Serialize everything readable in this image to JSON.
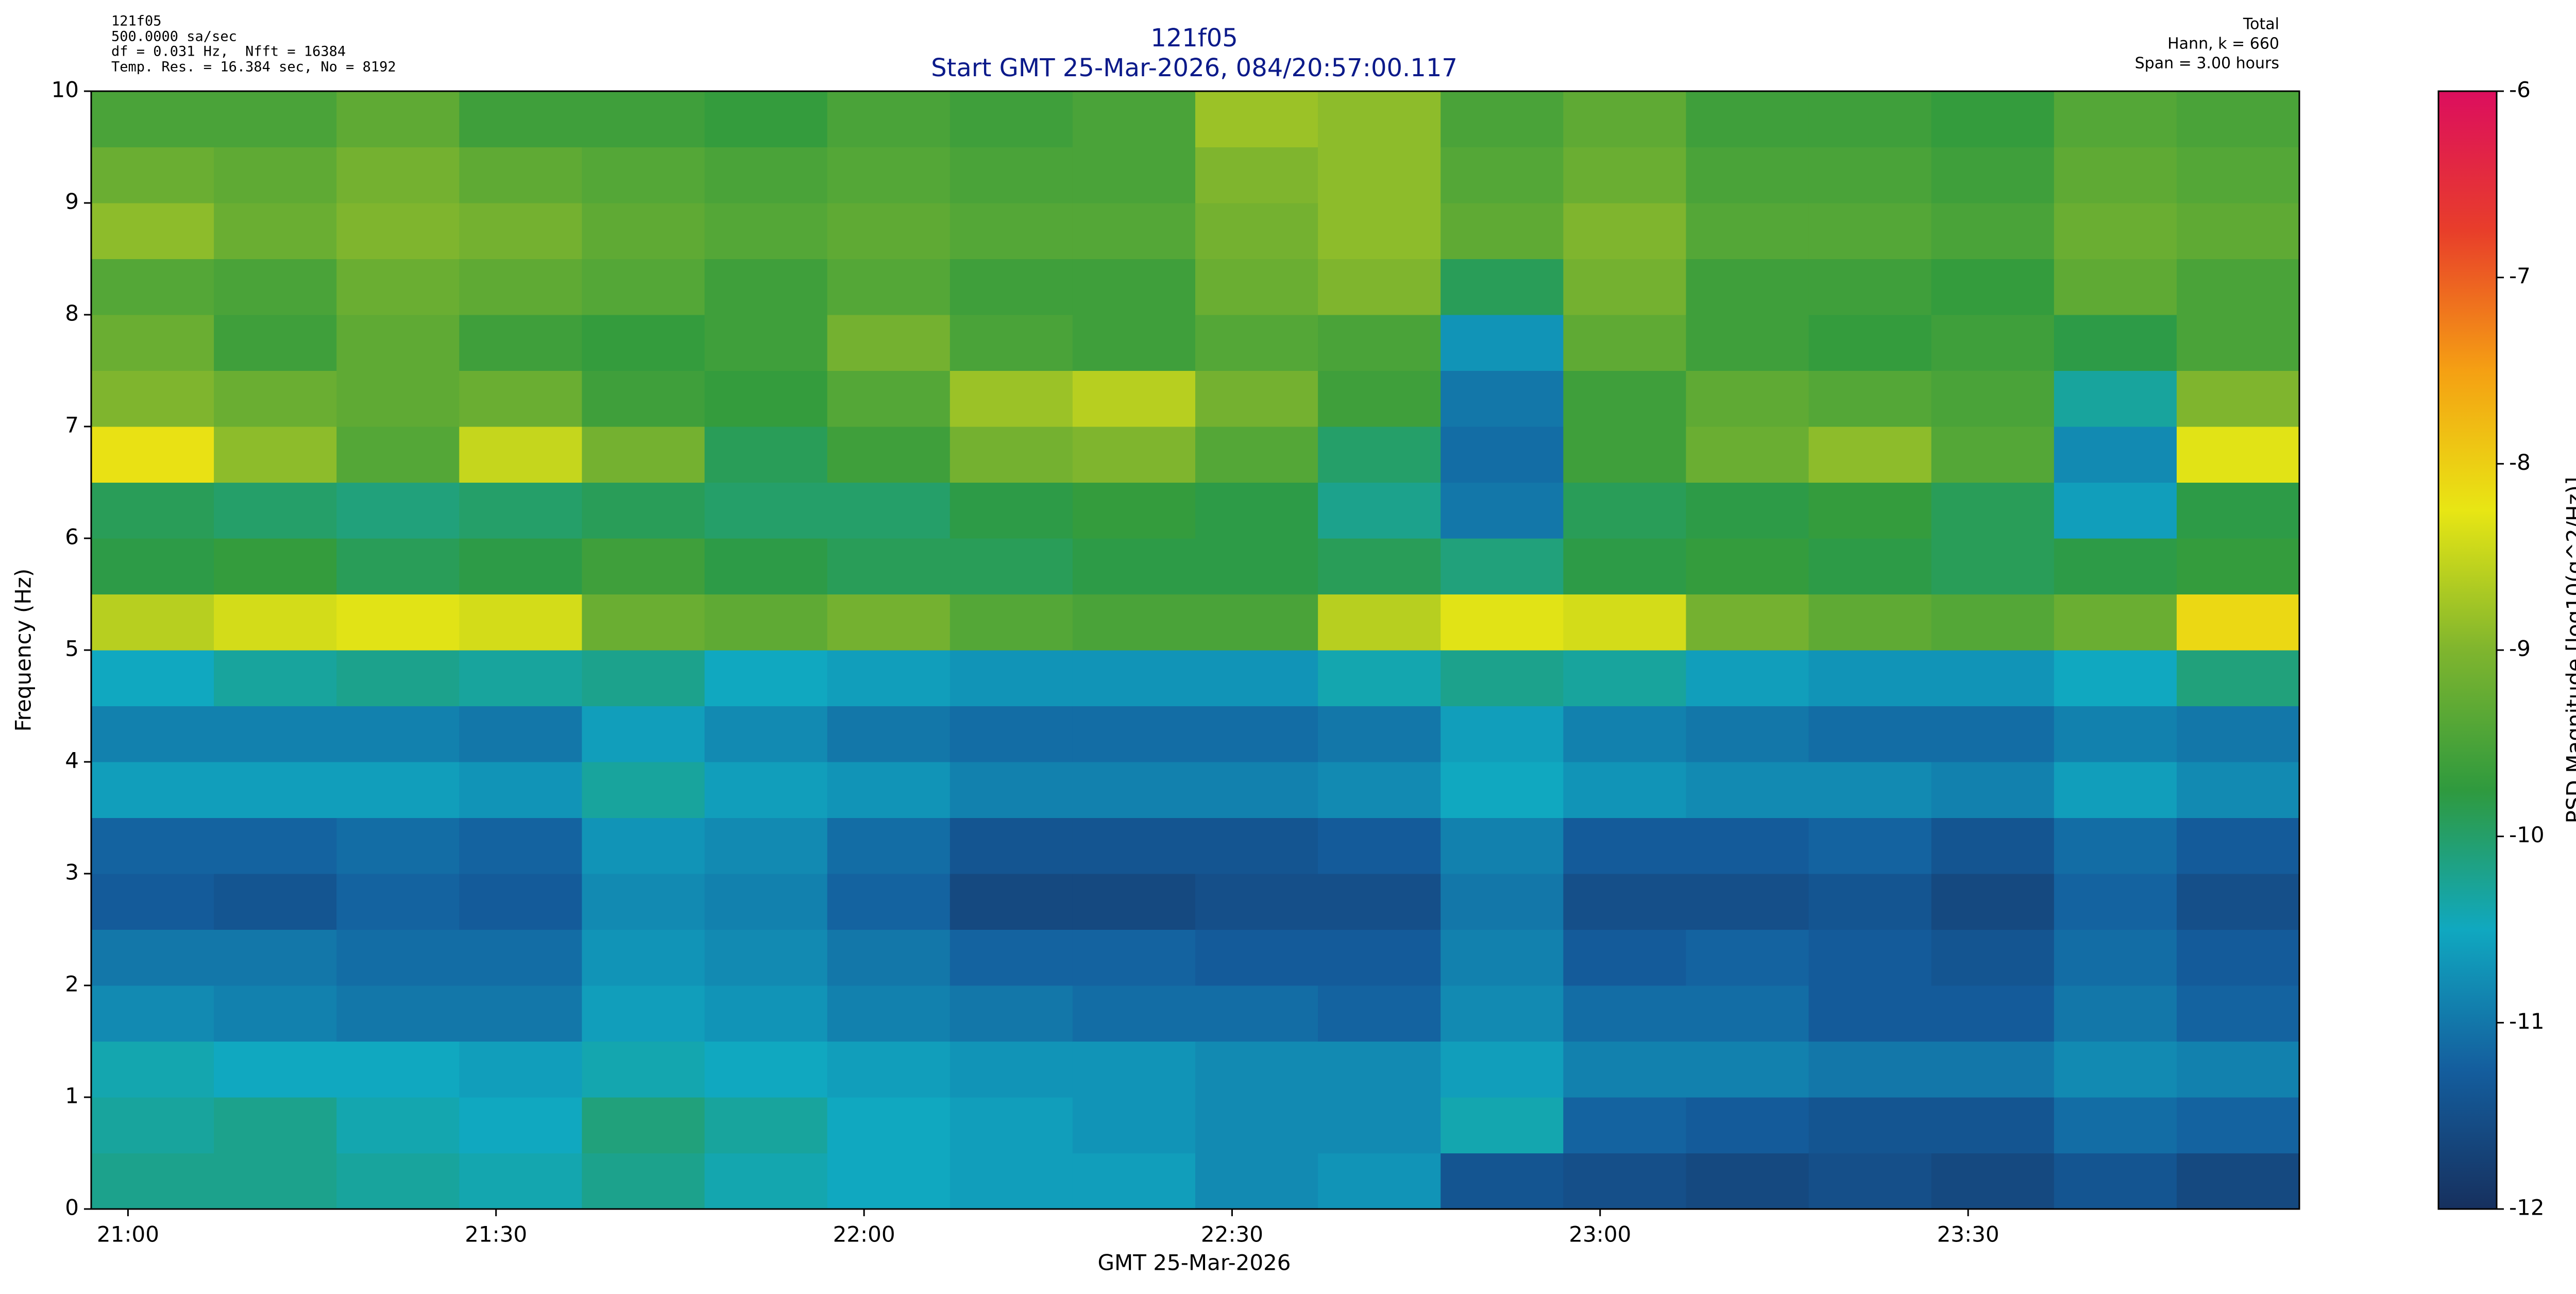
{
  "chart_data": {
    "type": "heatmap",
    "title": "121f05",
    "subtitle": "Start GMT 25-Mar-2026, 084/20:57:00.117",
    "info_left": [
      "121f05",
      "500.0000 sa/sec",
      "df = 0.031 Hz,  Nfft = 16384",
      "Temp. Res. = 16.384 sec, No = 8192"
    ],
    "info_right": [
      "Total",
      "Hann, k = 660",
      "Span = 3.00 hours"
    ],
    "x_label": "GMT 25-Mar-2026",
    "y_label": "Frequency (Hz)",
    "colorbar_label": "PSD Magnitude [log10(g^2/Hz)]",
    "xlim": [
      1257,
      1437
    ],
    "xticks": [
      {
        "value": 1260,
        "label": "21:00"
      },
      {
        "value": 1290,
        "label": "21:30"
      },
      {
        "value": 1320,
        "label": "22:00"
      },
      {
        "value": 1350,
        "label": "22:30"
      },
      {
        "value": 1380,
        "label": "23:00"
      },
      {
        "value": 1410,
        "label": "23:30"
      }
    ],
    "ylim": [
      0,
      10
    ],
    "yticks": [
      0,
      1,
      2,
      3,
      4,
      5,
      6,
      7,
      8,
      9,
      10
    ],
    "zlim": [
      -12,
      -6
    ],
    "zticks": [
      -6,
      -7,
      -8,
      -9,
      -10,
      -11,
      -12
    ],
    "colorscale": [
      "#16305e",
      "#145e9e",
      "#10a8c0",
      "#2f9a3e",
      "#7fb52e",
      "#e8e614",
      "#f5a013",
      "#e83e2a",
      "#dc0e5e"
    ],
    "x": [
      1262,
      1272,
      1282,
      1292,
      1302,
      1312,
      1322,
      1332,
      1342,
      1352,
      1362,
      1372,
      1382,
      1392,
      1402,
      1412,
      1422,
      1432
    ],
    "y": [
      0.25,
      0.75,
      1.25,
      1.75,
      2.25,
      2.75,
      3.25,
      3.75,
      4.25,
      4.75,
      5.25,
      5.75,
      6.25,
      6.75,
      7.25,
      7.75,
      8.25,
      8.75,
      9.25,
      9.75
    ],
    "z": [
      [
        -10.2,
        -10.2,
        -10.3,
        -10.4,
        -10.2,
        -10.4,
        -10.5,
        -10.6,
        -10.6,
        -10.8,
        -10.7,
        -11.4,
        -11.5,
        -11.6,
        -11.5,
        -11.6,
        -11.4,
        -11.6
      ],
      [
        -10.3,
        -10.2,
        -10.4,
        -10.5,
        -10.1,
        -10.3,
        -10.5,
        -10.6,
        -10.7,
        -10.8,
        -10.8,
        -10.4,
        -11.2,
        -11.3,
        -11.4,
        -11.4,
        -11.1,
        -11.2
      ],
      [
        -10.4,
        -10.5,
        -10.5,
        -10.6,
        -10.4,
        -10.5,
        -10.6,
        -10.7,
        -10.7,
        -10.8,
        -10.8,
        -10.6,
        -10.9,
        -10.9,
        -11.0,
        -11.0,
        -10.8,
        -10.9
      ],
      [
        -10.8,
        -10.9,
        -11.0,
        -11.0,
        -10.6,
        -10.7,
        -10.9,
        -11.0,
        -11.1,
        -11.1,
        -11.2,
        -10.8,
        -11.1,
        -11.1,
        -11.3,
        -11.3,
        -11.0,
        -11.2
      ],
      [
        -11.0,
        -11.0,
        -11.1,
        -11.1,
        -10.7,
        -10.8,
        -11.0,
        -11.2,
        -11.2,
        -11.3,
        -11.3,
        -10.9,
        -11.3,
        -11.2,
        -11.3,
        -11.4,
        -11.1,
        -11.3
      ],
      [
        -11.3,
        -11.4,
        -11.2,
        -11.3,
        -10.8,
        -10.9,
        -11.2,
        -11.6,
        -11.6,
        -11.5,
        -11.5,
        -11.0,
        -11.5,
        -11.5,
        -11.4,
        -11.6,
        -11.2,
        -11.5
      ],
      [
        -11.2,
        -11.2,
        -11.1,
        -11.2,
        -10.7,
        -10.8,
        -11.1,
        -11.4,
        -11.4,
        -11.4,
        -11.3,
        -10.9,
        -11.3,
        -11.3,
        -11.2,
        -11.4,
        -11.1,
        -11.3
      ],
      [
        -10.6,
        -10.6,
        -10.6,
        -10.7,
        -10.3,
        -10.6,
        -10.7,
        -10.9,
        -10.9,
        -10.9,
        -10.8,
        -10.5,
        -10.7,
        -10.8,
        -10.8,
        -10.9,
        -10.6,
        -10.8
      ],
      [
        -10.9,
        -10.9,
        -10.9,
        -11.0,
        -10.6,
        -10.8,
        -11.0,
        -11.1,
        -11.1,
        -11.1,
        -11.0,
        -10.6,
        -10.9,
        -11.0,
        -11.1,
        -11.1,
        -10.9,
        -11.0
      ],
      [
        -10.5,
        -10.3,
        -10.2,
        -10.3,
        -10.2,
        -10.5,
        -10.6,
        -10.7,
        -10.7,
        -10.7,
        -10.4,
        -10.2,
        -10.3,
        -10.6,
        -10.7,
        -10.7,
        -10.5,
        -10.1
      ],
      [
        -8.6,
        -8.4,
        -8.3,
        -8.4,
        -9.2,
        -9.3,
        -9.1,
        -9.4,
        -9.5,
        -9.5,
        -8.6,
        -8.3,
        -8.4,
        -9.1,
        -9.3,
        -9.4,
        -9.2,
        -8.1
      ],
      [
        -9.8,
        -9.7,
        -9.9,
        -9.8,
        -9.6,
        -9.8,
        -9.9,
        -9.9,
        -9.8,
        -9.8,
        -9.9,
        -10.1,
        -9.8,
        -9.7,
        -9.8,
        -9.9,
        -9.8,
        -9.7
      ],
      [
        -9.9,
        -10.0,
        -10.1,
        -10.0,
        -9.9,
        -10.0,
        -10.0,
        -9.8,
        -9.7,
        -9.8,
        -10.2,
        -11.0,
        -9.9,
        -9.8,
        -9.7,
        -9.9,
        -10.6,
        -9.8
      ],
      [
        -8.2,
        -8.9,
        -9.4,
        -8.5,
        -9.1,
        -9.9,
        -9.6,
        -9.1,
        -9.0,
        -9.4,
        -10.0,
        -11.1,
        -9.6,
        -9.2,
        -8.9,
        -9.4,
        -10.8,
        -8.3
      ],
      [
        -9.0,
        -9.2,
        -9.3,
        -9.2,
        -9.6,
        -9.7,
        -9.4,
        -8.8,
        -8.6,
        -9.1,
        -9.6,
        -11.0,
        -9.6,
        -9.3,
        -9.4,
        -9.5,
        -10.3,
        -9.0
      ],
      [
        -9.2,
        -9.6,
        -9.3,
        -9.6,
        -9.7,
        -9.6,
        -9.1,
        -9.5,
        -9.6,
        -9.4,
        -9.5,
        -10.7,
        -9.3,
        -9.6,
        -9.7,
        -9.6,
        -9.8,
        -9.5
      ],
      [
        -9.4,
        -9.5,
        -9.2,
        -9.3,
        -9.4,
        -9.6,
        -9.4,
        -9.6,
        -9.6,
        -9.2,
        -9.0,
        -9.9,
        -9.1,
        -9.6,
        -9.6,
        -9.7,
        -9.3,
        -9.5
      ],
      [
        -8.9,
        -9.2,
        -9.0,
        -9.1,
        -9.3,
        -9.4,
        -9.3,
        -9.4,
        -9.4,
        -9.1,
        -8.9,
        -9.3,
        -9.0,
        -9.4,
        -9.4,
        -9.5,
        -9.2,
        -9.3
      ],
      [
        -9.2,
        -9.3,
        -9.1,
        -9.3,
        -9.4,
        -9.5,
        -9.4,
        -9.5,
        -9.5,
        -9.0,
        -8.9,
        -9.4,
        -9.2,
        -9.5,
        -9.5,
        -9.6,
        -9.3,
        -9.4
      ],
      [
        -9.5,
        -9.5,
        -9.3,
        -9.6,
        -9.6,
        -9.7,
        -9.5,
        -9.6,
        -9.5,
        -8.8,
        -8.9,
        -9.5,
        -9.3,
        -9.6,
        -9.6,
        -9.7,
        -9.4,
        -9.5
      ]
    ]
  }
}
